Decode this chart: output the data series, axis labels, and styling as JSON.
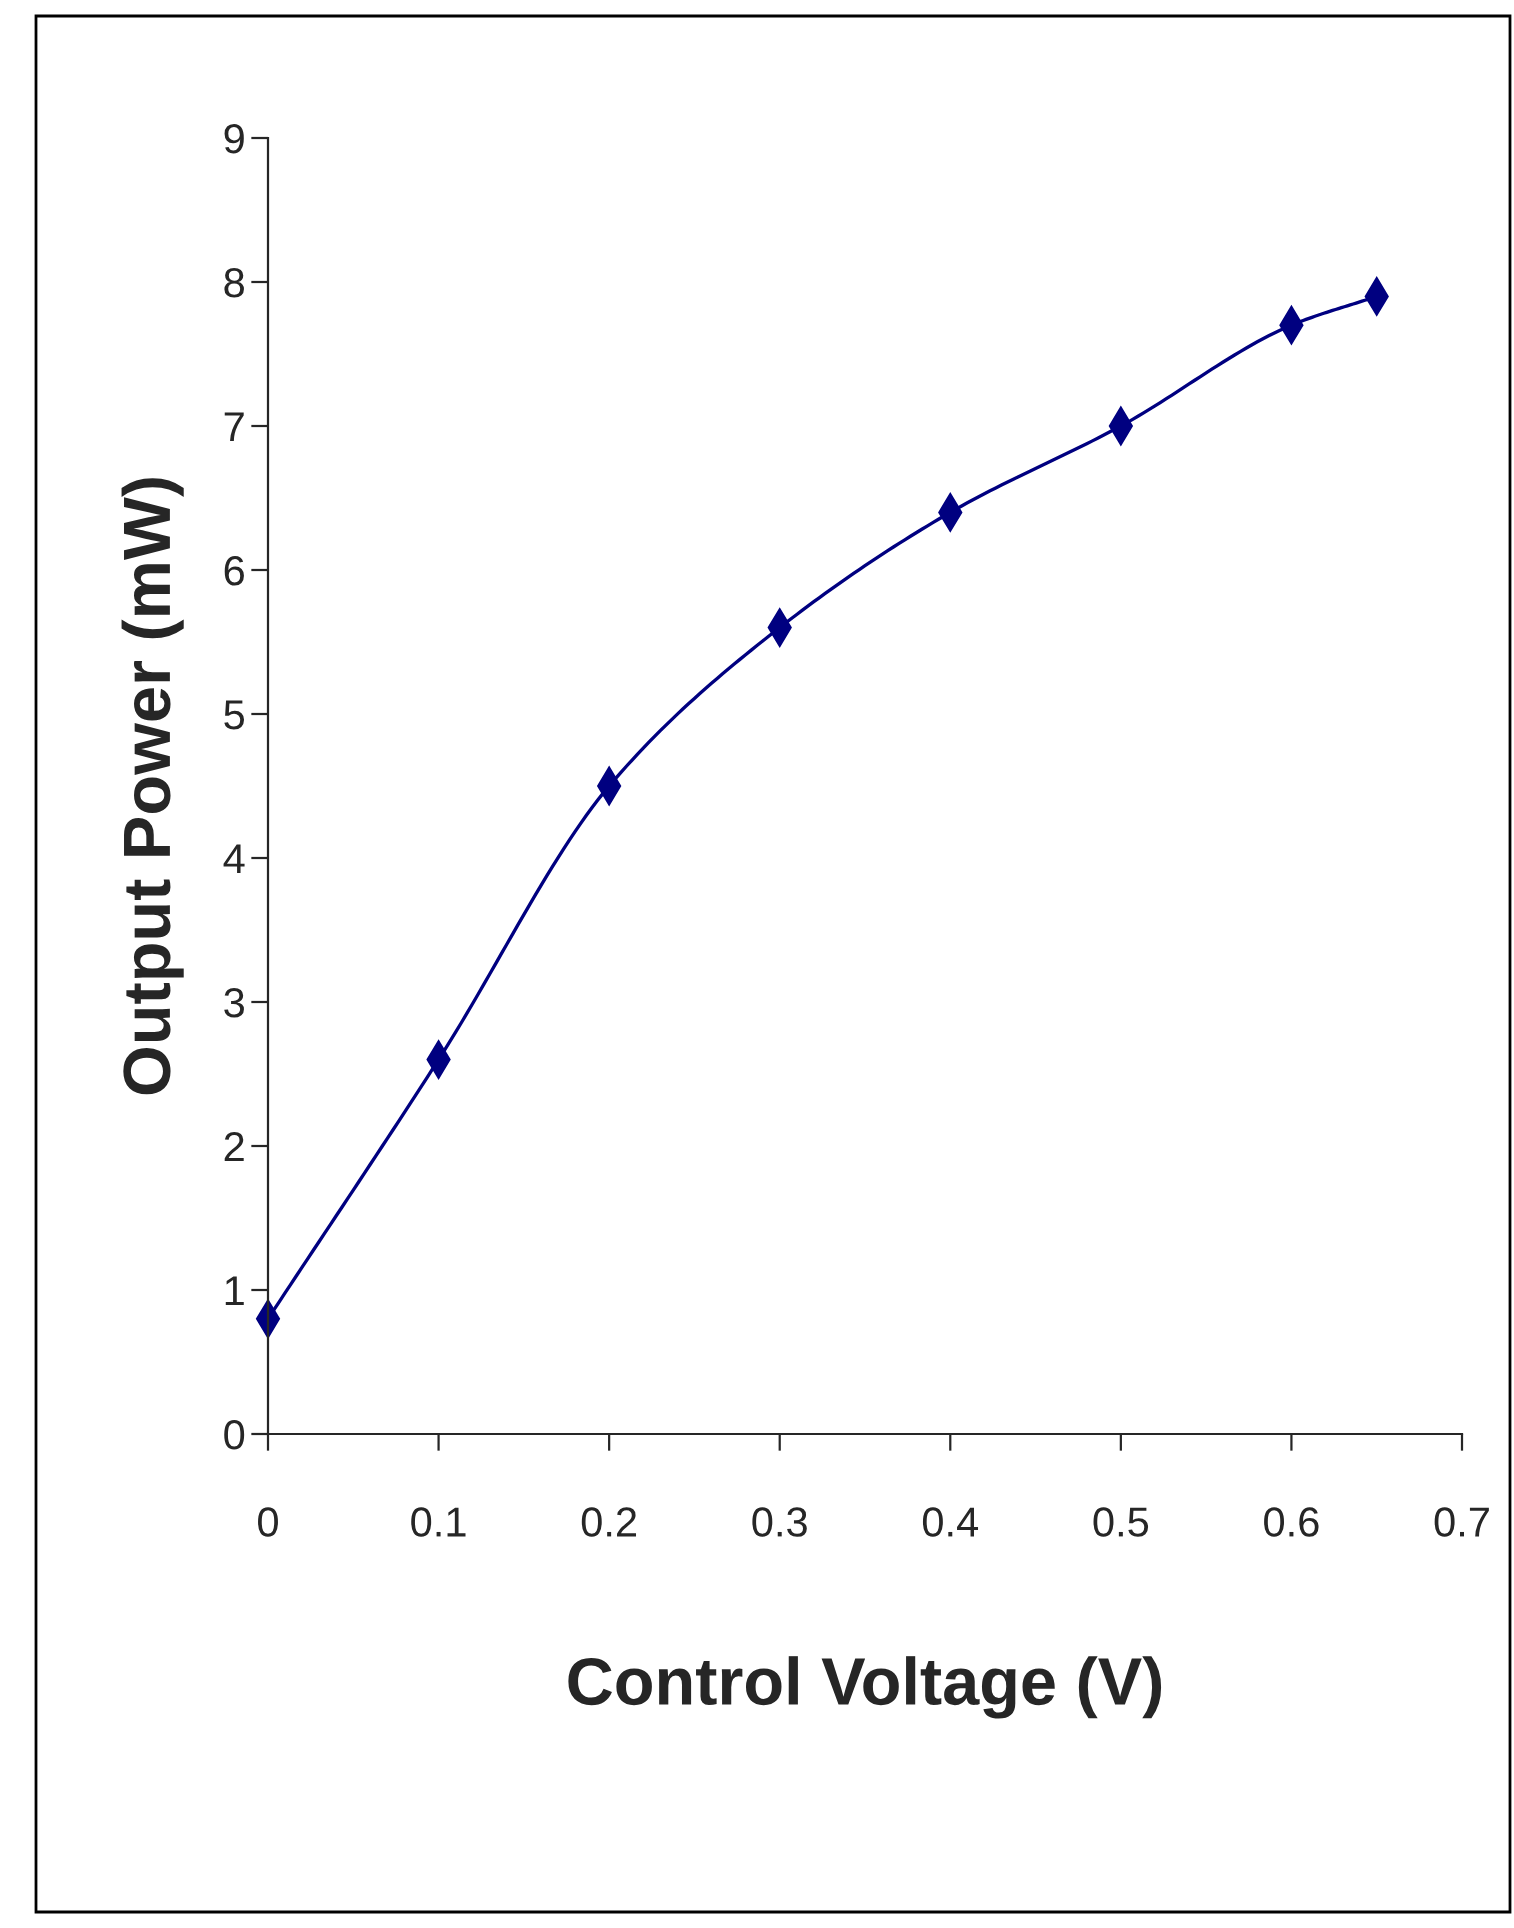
{
  "chart_data": {
    "type": "line",
    "xlabel": "Control Voltage (V)",
    "ylabel": "Output Power (mW)",
    "x": [
      0,
      0.1,
      0.2,
      0.3,
      0.4,
      0.5,
      0.6,
      0.65
    ],
    "series": [
      {
        "color": "#000080",
        "values": [
          0.8,
          2.6,
          4.5,
          5.6,
          6.4,
          7.0,
          7.7,
          7.9
        ]
      }
    ],
    "xlim": [
      0,
      0.7
    ],
    "xticks": [
      0,
      0.1,
      0.2,
      0.3,
      0.4,
      0.5,
      0.6,
      0.7
    ],
    "ylim": [
      0,
      9
    ],
    "yticks": [
      0,
      1,
      2,
      3,
      4,
      5,
      6,
      7,
      8,
      9
    ],
    "grid": false,
    "legend": false,
    "marker": "diamond",
    "line_style": "solid"
  }
}
